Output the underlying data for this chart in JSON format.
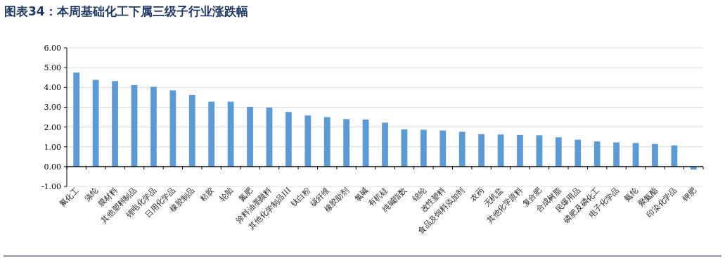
{
  "chart_data": {
    "type": "bar",
    "title": "图表34：本周基础化工下属三级子行业涨跌幅",
    "categories": [
      "氟化工",
      "涤纶",
      "膜材料",
      "其他塑料制品",
      "锂电化学品",
      "日用化学品",
      "橡胶制品",
      "粘胶",
      "轮胎",
      "氮肥",
      "涂料油墨颜料",
      "其他化学制品III",
      "钛白粉",
      "碳纤维",
      "橡胶助剂",
      "氯碱",
      "有机硅",
      "纯碱指数",
      "锦纶",
      "改性塑料",
      "食品及饲料添加剂",
      "农药",
      "无机盐",
      "其他化学原料",
      "复合肥",
      "合成树脂",
      "民爆用品",
      "磷肥及磷化工",
      "电子化学品",
      "氨纶",
      "聚氨酯",
      "印染化学品",
      "钾肥"
    ],
    "values": [
      4.75,
      4.38,
      4.32,
      4.12,
      4.03,
      3.85,
      3.62,
      3.28,
      3.28,
      3.02,
      2.98,
      2.76,
      2.58,
      2.5,
      2.4,
      2.38,
      2.22,
      1.88,
      1.86,
      1.82,
      1.76,
      1.64,
      1.62,
      1.6,
      1.58,
      1.48,
      1.36,
      1.27,
      1.22,
      1.19,
      1.14,
      1.07,
      -0.15
    ],
    "color": "#5b9bd5",
    "ylim": [
      -1,
      6
    ],
    "yticks": [
      {
        "value": -1,
        "label": "-1.00"
      },
      {
        "value": 0,
        "label": "0.00"
      },
      {
        "value": 1,
        "label": "1.00"
      },
      {
        "value": 2,
        "label": "2.00"
      },
      {
        "value": 3,
        "label": "3.00"
      },
      {
        "value": 4,
        "label": "4.00"
      },
      {
        "value": 5,
        "label": "5.00"
      },
      {
        "value": 6,
        "label": "6.00"
      }
    ],
    "grid": "y"
  }
}
